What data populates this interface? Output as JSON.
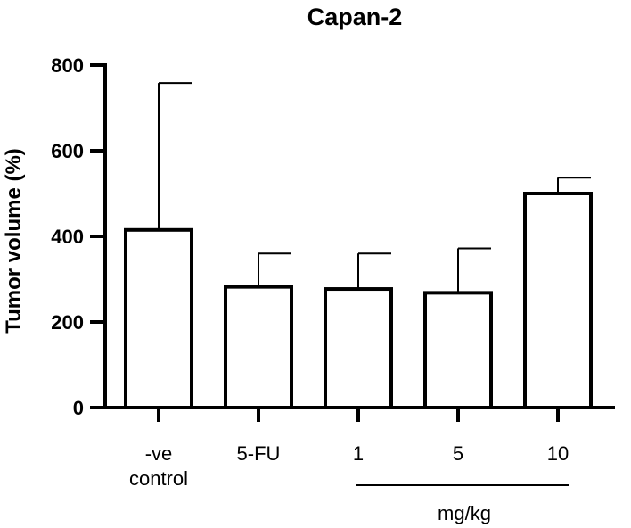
{
  "chart_data": {
    "type": "bar",
    "title": "Capan-2",
    "xlabel": "",
    "ylabel": "Tumor volume (%)",
    "ylim": [
      0,
      800
    ],
    "yticks": [
      0,
      200,
      400,
      600,
      800
    ],
    "categories": [
      "-ve control",
      "5-FU",
      "1",
      "5",
      "10"
    ],
    "category_lines": [
      [
        "-ve",
        "control"
      ],
      [
        "5-FU"
      ],
      [
        "1"
      ],
      [
        "5"
      ],
      [
        "10"
      ]
    ],
    "values": [
      415,
      282,
      277,
      268,
      500
    ],
    "error_upper": [
      758,
      360,
      360,
      372,
      537
    ],
    "group_label": "mg/kg",
    "group_span": [
      "1",
      "10"
    ],
    "grid": false,
    "colors": {
      "bar_fill": "#ffffff",
      "stroke": "#000000"
    }
  }
}
